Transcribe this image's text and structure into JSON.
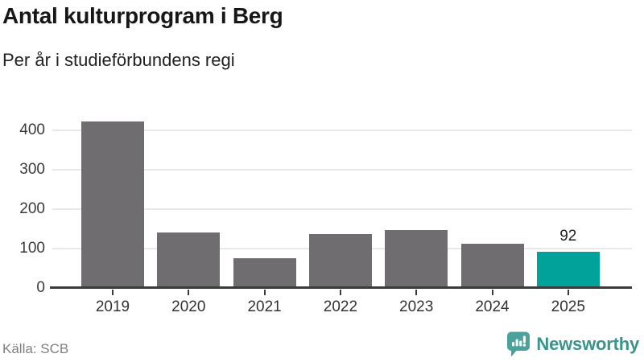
{
  "header": {
    "title": "Antal kulturprogram i Berg",
    "subtitle": "Per år i studieförbundens regi"
  },
  "footer": {
    "source": "Källa: SCB",
    "brand": "Newsworthy"
  },
  "chart_data": {
    "type": "bar",
    "title": "Antal kulturprogram i Berg",
    "subtitle": "Per år i studieförbundens regi",
    "categories": [
      "2019",
      "2020",
      "2021",
      "2022",
      "2023",
      "2024",
      "2025"
    ],
    "values": [
      424,
      142,
      75,
      138,
      147,
      112,
      92
    ],
    "bar_labels": [
      "",
      "",
      "",
      "",
      "",
      "",
      "92"
    ],
    "highlight_index": 6,
    "xlabel": "",
    "ylabel": "",
    "ylim": [
      0,
      450
    ],
    "yticks": [
      0,
      100,
      200,
      300,
      400
    ],
    "grid": true,
    "legend": false,
    "colors": {
      "bar": "#706d71",
      "highlight": "#00a29a",
      "grid": "#e8e8e8",
      "axis": "#3b3b3b",
      "brand_icon": "#4aa29b",
      "brand_text": "#3a938c"
    },
    "source": "Källa: SCB"
  }
}
